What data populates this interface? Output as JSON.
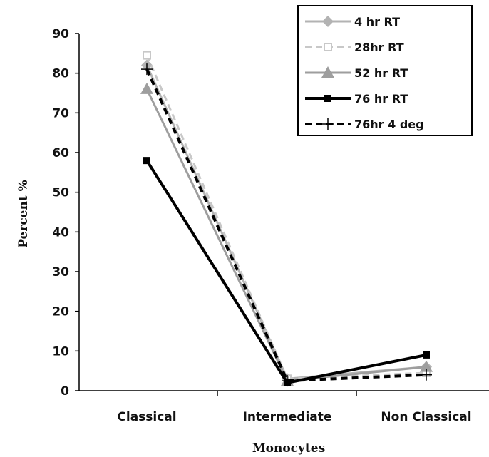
{
  "chart_data": {
    "type": "line",
    "categories": [
      "Classical",
      "Intermediate",
      "Non Classical"
    ],
    "xlabel": "Monocytes",
    "ylabel": "Percent %",
    "ylim": [
      0,
      90
    ],
    "yticks": [
      0,
      10,
      20,
      30,
      40,
      50,
      60,
      70,
      80,
      90
    ],
    "grid": false,
    "legend_position": "top-right",
    "series": [
      {
        "name": "4 hr RT",
        "values": [
          82,
          3,
          6
        ],
        "color": "#b3b3b3",
        "dash": "solid",
        "marker": "diamond"
      },
      {
        "name": "28hr RT",
        "values": [
          84.5,
          3,
          4.5
        ],
        "color": "#c8c8c8",
        "dash": "dashed",
        "marker": "square-open"
      },
      {
        "name": "52 hr RT",
        "values": [
          76,
          2.5,
          6
        ],
        "color": "#9e9e9e",
        "dash": "solid",
        "marker": "triangle"
      },
      {
        "name": "76 hr RT",
        "values": [
          58,
          2,
          9
        ],
        "color": "#000000",
        "dash": "solid",
        "marker": "square"
      },
      {
        "name": "76hr 4 deg",
        "values": [
          81,
          2.5,
          4
        ],
        "color": "#000000",
        "dash": "dashed",
        "marker": "plus"
      }
    ]
  }
}
